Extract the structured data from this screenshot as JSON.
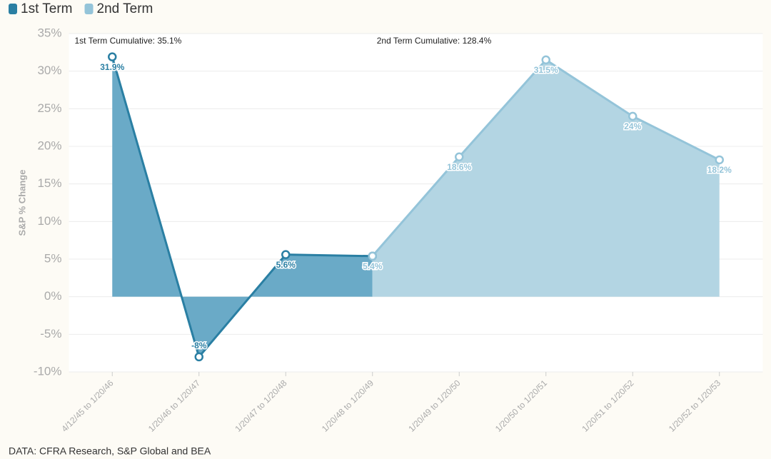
{
  "chart_data": {
    "type": "area",
    "y_label": "S&P % Change",
    "source": "DATA: CFRA Research, S&P Global and BEA",
    "annotations": [
      "1st Term Cumulative: 35.1%",
      "2nd Term Cumulative: 128.4%"
    ],
    "categories": [
      "4/12/45 to 1/20/46",
      "1/20/46 to 1/20/47",
      "1/20/47 to 1/20/48",
      "1/20/48 to 1/20/49",
      "1/20/49 to 1/20/50",
      "1/20/50 to 1/20/51",
      "1/20/51 to 1/20/52",
      "1/20/52 to 1/20/53"
    ],
    "series": [
      {
        "name": "1st Term",
        "color": "#2a7fa3",
        "fill": "#6aaac7",
        "values": [
          31.9,
          -8,
          5.6,
          5.4,
          null,
          null,
          null,
          null
        ],
        "value_labels": [
          "31.9%",
          "-8%",
          "5.6%",
          null,
          null,
          null,
          null,
          null
        ]
      },
      {
        "name": "2nd Term",
        "color": "#94c4d9",
        "fill": "#b3d5e3",
        "values": [
          null,
          null,
          null,
          5.4,
          18.6,
          31.5,
          24,
          18.2
        ],
        "value_labels": [
          null,
          null,
          null,
          "5.4%",
          "18.6%",
          "31.5%",
          "24%",
          "18.2%"
        ]
      }
    ],
    "ylim": [
      -10,
      35
    ],
    "yticks": [
      {
        "value": -10,
        "label": "-10%"
      },
      {
        "value": -5,
        "label": "-5%"
      },
      {
        "value": 0,
        "label": "0%"
      },
      {
        "value": 5,
        "label": "5%"
      },
      {
        "value": 10,
        "label": "10%"
      },
      {
        "value": 15,
        "label": "15%"
      },
      {
        "value": 20,
        "label": "20%"
      },
      {
        "value": 25,
        "label": "25%"
      },
      {
        "value": 30,
        "label": "30%"
      },
      {
        "value": 35,
        "label": "35%"
      }
    ],
    "grid": true,
    "legend": "top-left"
  }
}
